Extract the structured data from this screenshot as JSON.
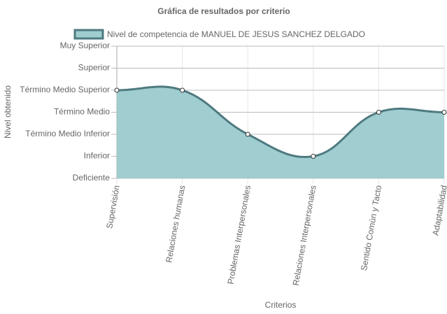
{
  "chart_data": {
    "type": "area",
    "title": "Gráfica de resultados por criterio",
    "x_label": "Criterios",
    "y_label": "Nivel obtenido",
    "categories": [
      "Supervisión",
      "Relaciones humanas",
      "Problemas Interpersonales",
      "Relaciones Interpersonales",
      "Sentido Común y Tacto",
      "Adaptabilidad"
    ],
    "series": [
      {
        "name": "Nivel de competencia de MANUEL DE JESUS SANCHEZ DELGADO",
        "color": "#4e7a80",
        "fill": "#a0cdcf",
        "values": [
          4,
          4,
          2,
          1,
          3,
          3
        ]
      }
    ],
    "ylim": [
      0,
      6
    ],
    "yticks": [
      {
        "value": 0,
        "label": "Deficiente"
      },
      {
        "value": 1,
        "label": "Inferior"
      },
      {
        "value": 2,
        "label": "Término Medio Inferior"
      },
      {
        "value": 3,
        "label": "Término Medio"
      },
      {
        "value": 4,
        "label": "Término Medio Superior"
      },
      {
        "value": 5,
        "label": "Superior"
      },
      {
        "value": 6,
        "label": "Muy Superior"
      }
    ],
    "grid": true
  }
}
